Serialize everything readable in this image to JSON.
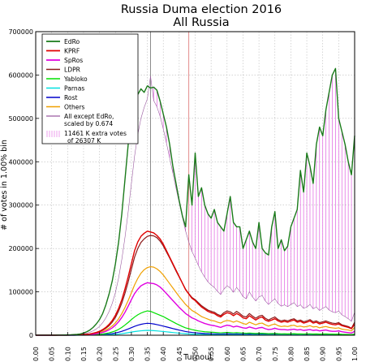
{
  "chart_data": {
    "type": "line",
    "title": "Russia Duma election 2016",
    "subtitle": "All Russia",
    "xlabel": "Turnout",
    "ylabel": "# of votes in 1.00% bin",
    "xlim": [
      0.0,
      1.0
    ],
    "ylim": [
      0,
      700000
    ],
    "xticks": [
      "0.00",
      "0.05",
      "0.10",
      "0.15",
      "0.20",
      "0.25",
      "0.30",
      "0.35",
      "0.40",
      "0.45",
      "0.50",
      "0.55",
      "0.60",
      "0.65",
      "0.70",
      "0.75",
      "0.80",
      "0.85",
      "0.90",
      "0.95",
      "1.00"
    ],
    "yticks": [
      "0",
      "100000",
      "200000",
      "300000",
      "400000",
      "500000",
      "600000",
      "700000"
    ],
    "grid": true,
    "legend_position": "top-left",
    "vlines": [
      {
        "x": 0.36,
        "color": "#808080"
      },
      {
        "x": 0.48,
        "color": "#e08080"
      }
    ],
    "x": [
      0.0,
      0.01,
      0.02,
      0.03,
      0.04,
      0.05,
      0.06,
      0.07,
      0.08,
      0.09,
      0.1,
      0.11,
      0.12,
      0.13,
      0.14,
      0.15,
      0.16,
      0.17,
      0.18,
      0.19,
      0.2,
      0.21,
      0.22,
      0.23,
      0.24,
      0.25,
      0.26,
      0.27,
      0.28,
      0.29,
      0.3,
      0.31,
      0.32,
      0.33,
      0.34,
      0.35,
      0.36,
      0.37,
      0.38,
      0.39,
      0.4,
      0.41,
      0.42,
      0.43,
      0.44,
      0.45,
      0.46,
      0.47,
      0.48,
      0.49,
      0.5,
      0.51,
      0.52,
      0.53,
      0.54,
      0.55,
      0.56,
      0.57,
      0.58,
      0.59,
      0.6,
      0.61,
      0.62,
      0.63,
      0.64,
      0.65,
      0.66,
      0.67,
      0.68,
      0.69,
      0.7,
      0.71,
      0.72,
      0.73,
      0.74,
      0.75,
      0.76,
      0.77,
      0.78,
      0.79,
      0.8,
      0.81,
      0.82,
      0.83,
      0.84,
      0.85,
      0.86,
      0.87,
      0.88,
      0.89,
      0.9,
      0.91,
      0.92,
      0.93,
      0.94,
      0.95,
      0.96,
      0.97,
      0.98,
      0.99,
      1.0
    ],
    "series": [
      {
        "name": "EdRo",
        "color": "#1a7a1a",
        "width": 1.4,
        "values": [
          200,
          100,
          100,
          100,
          100,
          200,
          200,
          300,
          400,
          600,
          800,
          1000,
          1500,
          2000,
          3000,
          5000,
          8000,
          12000,
          18000,
          26000,
          36000,
          50000,
          70000,
          95000,
          125000,
          165000,
          215000,
          280000,
          360000,
          440000,
          505000,
          540000,
          555000,
          568000,
          560000,
          575000,
          570000,
          572000,
          565000,
          540000,
          510000,
          480000,
          440000,
          390000,
          350000,
          310000,
          275000,
          250000,
          370000,
          300000,
          420000,
          320000,
          340000,
          300000,
          280000,
          270000,
          290000,
          260000,
          250000,
          240000,
          280000,
          320000,
          260000,
          250000,
          250000,
          200000,
          220000,
          240000,
          215000,
          200000,
          260000,
          200000,
          190000,
          185000,
          250000,
          285000,
          200000,
          220000,
          195000,
          205000,
          250000,
          270000,
          290000,
          380000,
          330000,
          420000,
          390000,
          350000,
          440000,
          480000,
          460000,
          520000,
          560000,
          600000,
          615000,
          500000,
          470000,
          440000,
          400000,
          370000,
          460000
        ]
      },
      {
        "name": "KPRF",
        "color": "#e00000",
        "width": 1.4,
        "values": [
          50,
          30,
          30,
          30,
          30,
          50,
          60,
          80,
          100,
          150,
          200,
          300,
          400,
          600,
          900,
          1400,
          2100,
          3000,
          4500,
          6500,
          9000,
          13000,
          18000,
          25000,
          34000,
          46000,
          62000,
          82000,
          107000,
          135000,
          165000,
          195000,
          215000,
          228000,
          235000,
          240000,
          238000,
          236000,
          230000,
          222000,
          210000,
          195000,
          180000,
          165000,
          150000,
          135000,
          120000,
          105000,
          95000,
          85000,
          80000,
          72000,
          65000,
          60000,
          55000,
          52000,
          50000,
          45000,
          42000,
          48000,
          52000,
          50000,
          45000,
          50000,
          46000,
          40000,
          38000,
          45000,
          40000,
          35000,
          40000,
          42000,
          35000,
          32000,
          35000,
          38000,
          33000,
          30000,
          32000,
          30000,
          33000,
          35000,
          30000,
          32000,
          28000,
          30000,
          33000,
          28000,
          30000,
          26000,
          28000,
          30000,
          27000,
          25000,
          24000,
          26000,
          22000,
          20000,
          18000,
          15000,
          25000
        ]
      },
      {
        "name": "SpRos",
        "color": "#e000e0",
        "width": 1.4,
        "values": [
          20,
          15,
          15,
          15,
          15,
          20,
          30,
          40,
          60,
          80,
          100,
          150,
          200,
          300,
          450,
          700,
          1000,
          1500,
          2200,
          3200,
          4500,
          6500,
          9000,
          12500,
          17000,
          23000,
          31000,
          41000,
          53000,
          67000,
          82000,
          96000,
          106000,
          114000,
          118000,
          121000,
          120000,
          119000,
          116000,
          111000,
          104000,
          96000,
          88000,
          80000,
          72000,
          64000,
          57000,
          50000,
          45000,
          40000,
          37000,
          33000,
          30000,
          27000,
          25000,
          23000,
          22000,
          20000,
          18000,
          21000,
          23000,
          22000,
          19000,
          21000,
          19000,
          17000,
          16000,
          19000,
          17000,
          15000,
          17000,
          18000,
          15000,
          13000,
          14000,
          16000,
          14000,
          13000,
          13000,
          12000,
          13000,
          14000,
          12000,
          13000,
          11000,
          12000,
          13000,
          11000,
          12000,
          10000,
          11000,
          12000,
          10000,
          9000,
          9000,
          10000,
          8000,
          7000,
          6000,
          5000,
          9000
        ]
      },
      {
        "name": "LDPR",
        "color": "#8b1a1a",
        "width": 1.2,
        "values": [
          40,
          30,
          30,
          30,
          30,
          40,
          50,
          70,
          90,
          130,
          180,
          260,
          360,
          540,
          800,
          1250,
          1900,
          2700,
          4000,
          5800,
          8000,
          11500,
          16000,
          22000,
          30000,
          41000,
          56000,
          74000,
          97000,
          123000,
          152000,
          180000,
          200000,
          214000,
          222000,
          228000,
          230000,
          229000,
          225000,
          217000,
          206000,
          192000,
          178000,
          163000,
          148000,
          134000,
          120000,
          106000,
          96000,
          87000,
          82000,
          75000,
          68000,
          63000,
          58000,
          55000,
          53000,
          48000,
          45000,
          52000,
          56000,
          54000,
          49000,
          55000,
          50000,
          44000,
          42000,
          50000,
          44000,
          39000,
          44000,
          46000,
          39000,
          35000,
          39000,
          42000,
          36000,
          33000,
          35000,
          33000,
          36000,
          38000,
          33000,
          35000,
          31000,
          33000,
          36000,
          31000,
          33000,
          29000,
          31000,
          33000,
          30000,
          28000,
          27000,
          29000,
          24000,
          22000,
          20000,
          16000,
          30000
        ]
      },
      {
        "name": "Yabloko",
        "color": "#00e000",
        "width": 1.2,
        "values": [
          10,
          8,
          8,
          8,
          8,
          10,
          15,
          20,
          30,
          40,
          50,
          70,
          100,
          140,
          200,
          300,
          450,
          650,
          950,
          1400,
          2000,
          2900,
          4000,
          5500,
          7500,
          10000,
          13500,
          18000,
          23500,
          29500,
          36000,
          42000,
          47000,
          51000,
          54000,
          56000,
          55000,
          52000,
          49000,
          46000,
          43000,
          39000,
          35000,
          31000,
          27000,
          23500,
          20000,
          17000,
          15000,
          13000,
          11500,
          10000,
          9000,
          8000,
          7500,
          7000,
          6500,
          6000,
          5500,
          6000,
          6500,
          6000,
          5500,
          6000,
          5500,
          5000,
          4500,
          5000,
          4500,
          4000,
          4500,
          4500,
          4000,
          3500,
          3800,
          4000,
          3500,
          3200,
          3300,
          3100,
          3300,
          3500,
          3100,
          3200,
          2900,
          3000,
          3200,
          2800,
          3000,
          2600,
          2800,
          3000,
          2700,
          2500,
          2400,
          2600,
          2200,
          2000,
          1800,
          1500,
          2500
        ]
      },
      {
        "name": "Parnas",
        "color": "#00e0e0",
        "width": 1.2,
        "values": [
          2,
          1,
          1,
          1,
          1,
          2,
          3,
          4,
          6,
          8,
          10,
          14,
          20,
          28,
          40,
          60,
          90,
          130,
          190,
          280,
          400,
          580,
          800,
          1100,
          1500,
          2000,
          2700,
          3600,
          4700,
          5900,
          7200,
          8400,
          9400,
          10200,
          10800,
          11200,
          11000,
          10500,
          9900,
          9200,
          8500,
          7800,
          7000,
          6200,
          5500,
          4800,
          4100,
          3500,
          3000,
          2600,
          2300,
          2000,
          1800,
          1600,
          1500,
          1400,
          1300,
          1200,
          1100,
          1200,
          1300,
          1200,
          1100,
          1200,
          1100,
          1000,
          900,
          1000,
          900,
          800,
          900,
          900,
          800,
          700,
          760,
          800,
          700,
          640,
          660,
          620,
          660,
          700,
          620,
          640,
          580,
          600,
          640,
          560,
          600,
          520,
          560,
          600,
          540,
          500,
          480,
          520,
          440,
          400,
          360,
          300,
          500
        ]
      },
      {
        "name": "Rost",
        "color": "#0000cc",
        "width": 1.2,
        "values": [
          5,
          3,
          3,
          3,
          3,
          5,
          7,
          10,
          14,
          20,
          28,
          40,
          55,
          80,
          115,
          170,
          250,
          360,
          520,
          760,
          1100,
          1550,
          2150,
          2900,
          3900,
          5200,
          6900,
          9000,
          11500,
          14400,
          17500,
          20500,
          23000,
          25000,
          26500,
          27500,
          27000,
          26000,
          24500,
          22800,
          21000,
          19200,
          17300,
          15400,
          13600,
          11800,
          10100,
          8600,
          7400,
          6400,
          5700,
          5000,
          4500,
          4000,
          3700,
          3400,
          3200,
          3000,
          2700,
          3000,
          3200,
          3000,
          2700,
          3000,
          2700,
          2400,
          2200,
          2500,
          2200,
          2000,
          2200,
          2300,
          1900,
          1700,
          1900,
          2000,
          1800,
          1600,
          1700,
          1600,
          1700,
          1800,
          1600,
          1700,
          1500,
          1600,
          1700,
          1500,
          1600,
          1400,
          1500,
          1600,
          1400,
          1300,
          1300,
          1400,
          1200,
          1100,
          1000,
          800,
          1300
        ]
      },
      {
        "name": "Others",
        "color": "#f0a000",
        "width": 1.2,
        "values": [
          30,
          20,
          20,
          20,
          20,
          30,
          40,
          55,
          75,
          100,
          140,
          200,
          280,
          410,
          600,
          920,
          1400,
          2000,
          2900,
          4200,
          6000,
          8500,
          11800,
          16000,
          21500,
          28500,
          38000,
          50000,
          64000,
          80000,
          98000,
          116000,
          131000,
          143000,
          151000,
          156000,
          158000,
          157000,
          153000,
          147000,
          139000,
          129000,
          119000,
          109000,
          99000,
          89000,
          80000,
          71000,
          64000,
          57000,
          53000,
          48000,
          43000,
          40000,
          37000,
          34000,
          33000,
          30000,
          28000,
          32000,
          34000,
          33000,
          30000,
          33000,
          30000,
          27000,
          25000,
          30000,
          27000,
          24000,
          27000,
          28000,
          24000,
          21000,
          24000,
          26000,
          22000,
          20000,
          21000,
          20000,
          22000,
          23000,
          20000,
          21000,
          19000,
          20000,
          22000,
          19000,
          20000,
          17000,
          19000,
          20000,
          18000,
          17000,
          16000,
          17000,
          14000,
          13000,
          12000,
          10000,
          18000
        ]
      },
      {
        "name": "All except EdRo, scaled by 0.674",
        "color": "#9a5aa0",
        "width": 0.6,
        "values": [
          120,
          90,
          90,
          90,
          90,
          120,
          150,
          200,
          270,
          370,
          500,
          700,
          1000,
          1450,
          2100,
          3200,
          4800,
          6900,
          10000,
          14400,
          20200,
          28800,
          40000,
          54500,
          73500,
          98500,
          132000,
          175000,
          226000,
          285000,
          350000,
          413000,
          463000,
          500000,
          525000,
          545000,
          597000,
          541000,
          527000,
          505000,
          476000,
          443000,
          409000,
          374000,
          339000,
          305000,
          272000,
          240000,
          215000,
          193000,
          178000,
          161000,
          146000,
          134000,
          123000,
          116000,
          110000,
          101000,
          94000,
          106000,
          114000,
          109000,
          99000,
          110000,
          101000,
          89000,
          84000,
          100000,
          88000,
          79000,
          88000,
          92000,
          79000,
          71000,
          78000,
          84000,
          73000,
          67000,
          70000,
          66000,
          71000,
          75000,
          66000,
          70000,
          62000,
          65000,
          71000,
          61000,
          65000,
          57000,
          62000,
          66000,
          58000,
          54000,
          52000,
          56000,
          47000,
          43000,
          38000,
          32000,
          53000
        ]
      }
    ],
    "extra_votes_fill": {
      "color": "#e060e0"
    },
    "legend": {
      "entries": [
        "EdRo",
        "KPRF",
        "SpRos",
        "LDPR",
        "Yabloko",
        "Parnas",
        "Rost",
        "Others",
        "All except EdRo,\nscaled by 0.674"
      ],
      "extra_line_1": "11461 K extra votes",
      "extra_line_2": "of 26307 K"
    }
  }
}
